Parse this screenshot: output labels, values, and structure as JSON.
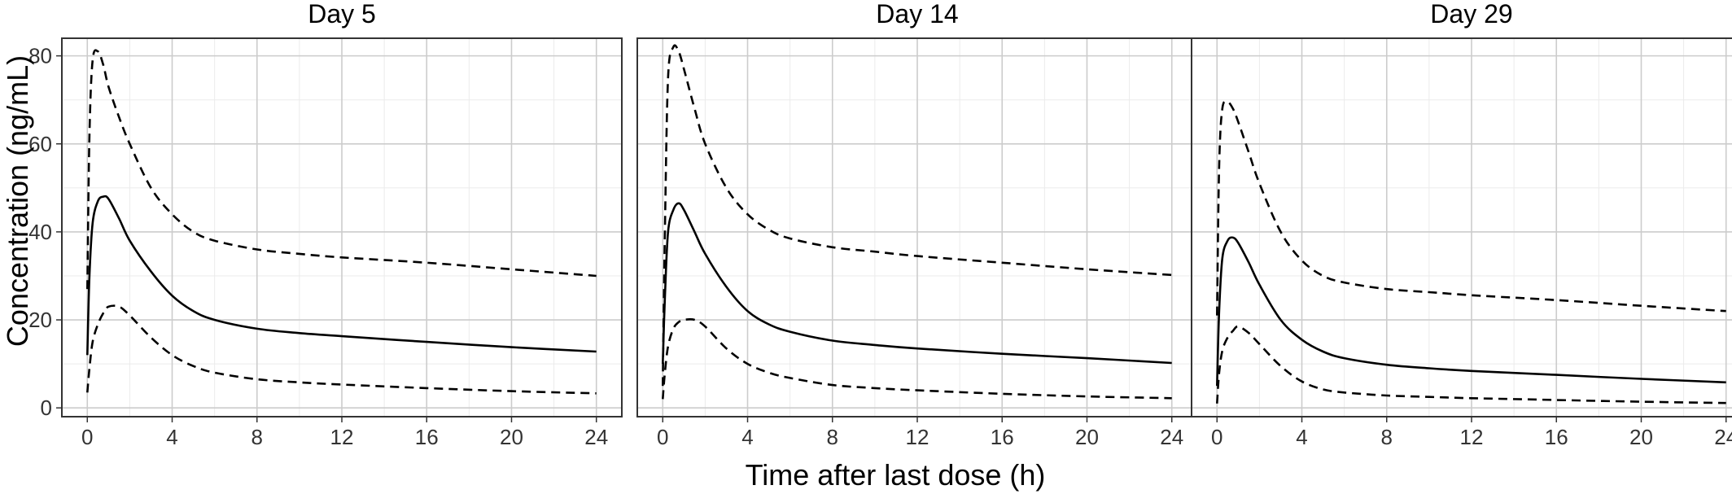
{
  "chart_data": {
    "type": "line",
    "xlabel": "Time after last dose (h)",
    "ylabel": "Concentration (ng/mL)",
    "xlim": [
      -1.2,
      25.2
    ],
    "ylim": [
      -2,
      84
    ],
    "x_ticks": [
      0,
      4,
      8,
      12,
      16,
      20,
      24
    ],
    "x_tick_labels": [
      "0",
      "4",
      "8",
      "12",
      "16",
      "20",
      "24"
    ],
    "y_ticks": [
      0,
      20,
      40,
      60,
      80
    ],
    "y_tick_labels": [
      "0",
      "20",
      "40",
      "60",
      "80"
    ],
    "grid": true,
    "legend": "none",
    "colors": {
      "line": "#000000",
      "grid_major": "#cccccc",
      "grid_minor": "#ebebeb",
      "border": "#333333"
    },
    "panels": [
      {
        "title": "Day 5",
        "series": [
          {
            "style": "dashed",
            "x": [
              0,
              0.1,
              0.25,
              0.5,
              0.75,
              1,
              1.5,
              2,
              3,
              4,
              5,
              6,
              8,
              10,
              12,
              16,
              20,
              24
            ],
            "y": [
              27,
              62,
              79,
              81,
              78,
              73,
              66,
              60,
              50,
              44,
              40,
              38,
              36,
              35,
              34.2,
              33,
              31.5,
              30
            ]
          },
          {
            "style": "solid",
            "x": [
              0,
              0.1,
              0.25,
              0.5,
              0.75,
              1,
              1.5,
              2,
              3,
              4,
              5,
              6,
              8,
              10,
              12,
              16,
              20,
              24
            ],
            "y": [
              12,
              30,
              42,
              47,
              48,
              47.5,
              43,
              38,
              31,
              25.5,
              22,
              20,
              18,
              17,
              16.3,
              15,
              13.8,
              12.8
            ]
          },
          {
            "style": "dashed",
            "x": [
              0,
              0.1,
              0.25,
              0.5,
              0.75,
              1,
              1.5,
              2,
              3,
              4,
              5,
              6,
              8,
              10,
              12,
              16,
              20,
              24
            ],
            "y": [
              3.5,
              9,
              15,
              19,
              21.5,
              23,
              23,
              21,
              16,
              12,
              9.5,
              8,
              6.5,
              5.8,
              5.3,
              4.5,
              3.8,
              3.3
            ]
          }
        ]
      },
      {
        "title": "Day 14",
        "series": [
          {
            "style": "dashed",
            "x": [
              0,
              0.1,
              0.25,
              0.5,
              0.75,
              1,
              1.5,
              2,
              3,
              4,
              5,
              6,
              8,
              10,
              12,
              16,
              20,
              24
            ],
            "y": [
              5,
              40,
              75,
              82,
              81,
              77,
              68,
              60,
              50,
              44,
              40.5,
              38.5,
              36.5,
              35.5,
              34.5,
              33,
              31.5,
              30.2
            ]
          },
          {
            "style": "solid",
            "x": [
              0,
              0.1,
              0.25,
              0.5,
              0.75,
              1,
              1.5,
              2,
              3,
              4,
              5,
              6,
              8,
              10,
              12,
              16,
              20,
              24
            ],
            "y": [
              10,
              25,
              40,
              45,
              46.5,
              45,
              40,
              35,
              27.5,
              22,
              19,
              17.3,
              15.3,
              14.3,
              13.5,
              12.3,
              11.3,
              10.2
            ]
          },
          {
            "style": "dashed",
            "x": [
              0,
              0.1,
              0.25,
              0.5,
              0.75,
              1,
              1.5,
              2,
              3,
              4,
              5,
              6,
              8,
              10,
              12,
              16,
              20,
              24
            ],
            "y": [
              2,
              8,
              14,
              18,
              19.5,
              20,
              20,
              18.5,
              13.5,
              10,
              8,
              6.8,
              5.2,
              4.5,
              4,
              3.2,
              2.6,
              2.2
            ]
          }
        ]
      },
      {
        "title": "Day 29",
        "series": [
          {
            "style": "dashed",
            "x": [
              0,
              0.1,
              0.25,
              0.5,
              0.75,
              1,
              1.5,
              2,
              3,
              4,
              5,
              6,
              8,
              10,
              12,
              16,
              20,
              24
            ],
            "y": [
              21,
              55,
              68,
              69.5,
              68,
              65,
              58,
              51,
              40,
              33.5,
              30,
              28.5,
              27,
              26.3,
              25.6,
              24.5,
              23.2,
              22
            ]
          },
          {
            "style": "solid",
            "x": [
              0,
              0.1,
              0.25,
              0.5,
              0.75,
              1,
              1.5,
              2,
              3,
              4,
              5,
              6,
              8,
              10,
              12,
              16,
              20,
              24
            ],
            "y": [
              5,
              22,
              34,
              38,
              38.7,
              37.5,
              33,
              28,
              20,
              15.5,
              12.8,
              11.3,
              9.8,
              9,
              8.4,
              7.5,
              6.6,
              5.8
            ]
          },
          {
            "style": "dashed",
            "x": [
              0,
              0.1,
              0.25,
              0.5,
              0.75,
              1,
              1.5,
              2,
              3,
              4,
              5,
              6,
              8,
              10,
              12,
              16,
              20,
              24
            ],
            "y": [
              1,
              8,
              13,
              16,
              17.5,
              18.5,
              17,
              14.5,
              9.5,
              6,
              4.2,
              3.5,
              2.8,
              2.5,
              2.2,
              1.8,
              1.4,
              1.1
            ]
          }
        ]
      }
    ]
  }
}
